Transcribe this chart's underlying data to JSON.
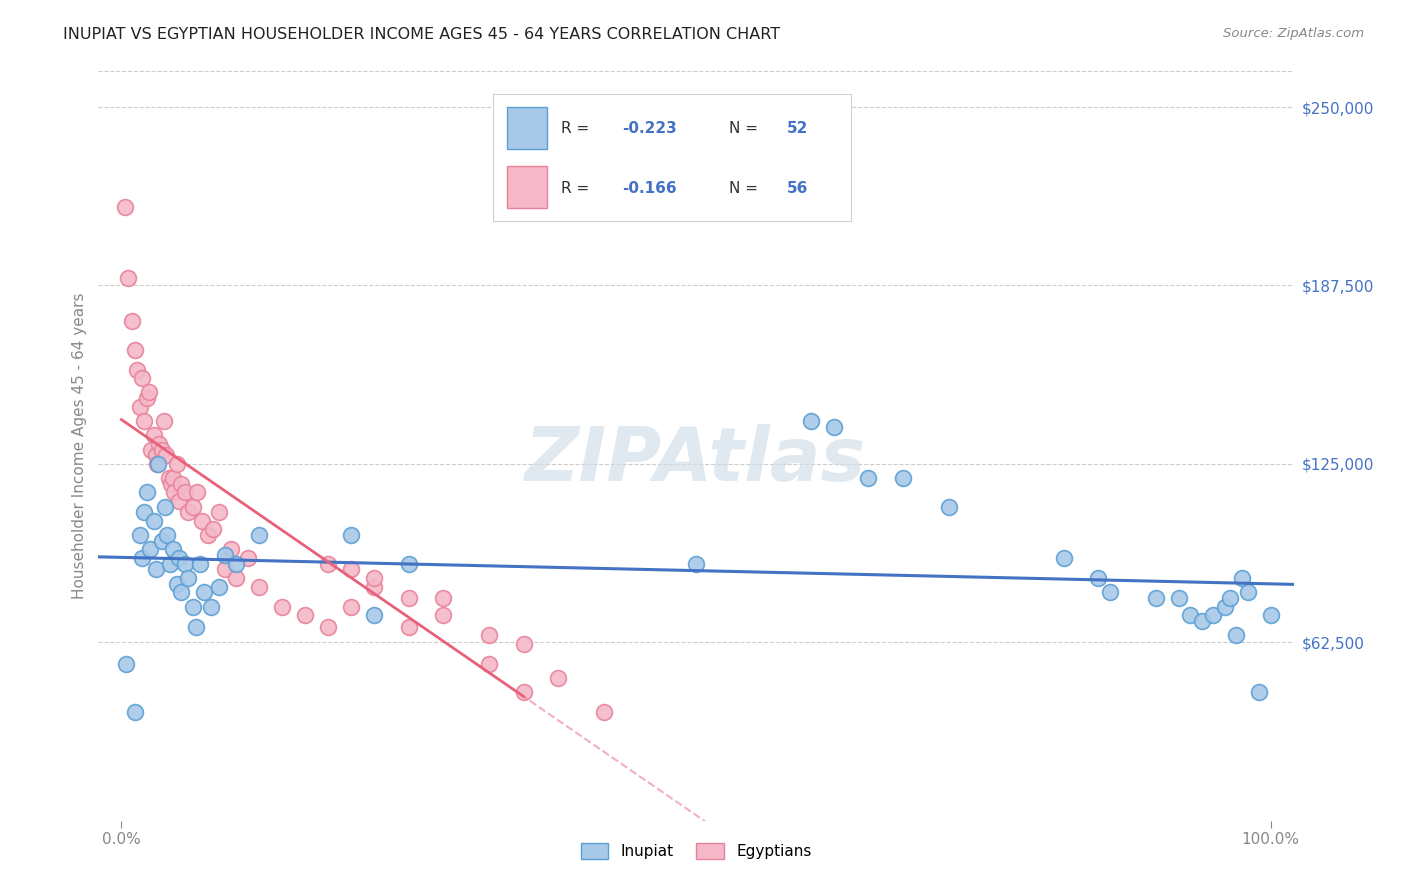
{
  "title": "INUPIAT VS EGYPTIAN HOUSEHOLDER INCOME AGES 45 - 64 YEARS CORRELATION CHART",
  "source": "Source: ZipAtlas.com",
  "ylabel": "Householder Income Ages 45 - 64 years",
  "ytick_labels": [
    "$62,500",
    "$125,000",
    "$187,500",
    "$250,000"
  ],
  "ytick_values": [
    62500,
    125000,
    187500,
    250000
  ],
  "ymin": 0,
  "ymax": 262500,
  "xmin": -0.02,
  "xmax": 1.02,
  "watermark": "ZIPAtlas",
  "inupiat_color": "#a8c8e8",
  "egyptian_color": "#f4b8c8",
  "inupiat_edge_color": "#5a9fd4",
  "egyptian_edge_color": "#e8829a",
  "inupiat_line_color": "#4472c4",
  "egyptian_line_color": "#e8607a",
  "inupiat_scatter_x": [
    0.004,
    0.012,
    0.016,
    0.018,
    0.02,
    0.022,
    0.025,
    0.028,
    0.03,
    0.032,
    0.035,
    0.038,
    0.04,
    0.042,
    0.045,
    0.048,
    0.05,
    0.052,
    0.055,
    0.058,
    0.062,
    0.065,
    0.068,
    0.072,
    0.078,
    0.085,
    0.09,
    0.1,
    0.12,
    0.2,
    0.22,
    0.25,
    0.5,
    0.6,
    0.62,
    0.65,
    0.68,
    0.72,
    0.82,
    0.85,
    0.86,
    0.9,
    0.92,
    0.93,
    0.94,
    0.95,
    0.96,
    0.965,
    0.97,
    0.975,
    0.98,
    0.99,
    1.0
  ],
  "inupiat_scatter_y": [
    55000,
    38000,
    100000,
    92000,
    108000,
    115000,
    95000,
    105000,
    88000,
    125000,
    98000,
    110000,
    100000,
    90000,
    95000,
    83000,
    92000,
    80000,
    90000,
    85000,
    75000,
    68000,
    90000,
    80000,
    75000,
    82000,
    93000,
    90000,
    100000,
    100000,
    72000,
    90000,
    90000,
    140000,
    138000,
    120000,
    120000,
    110000,
    92000,
    85000,
    80000,
    78000,
    78000,
    72000,
    70000,
    72000,
    75000,
    78000,
    65000,
    85000,
    80000,
    45000,
    72000
  ],
  "egyptian_scatter_x": [
    0.003,
    0.006,
    0.009,
    0.012,
    0.014,
    0.016,
    0.018,
    0.02,
    0.022,
    0.024,
    0.026,
    0.028,
    0.03,
    0.031,
    0.033,
    0.035,
    0.037,
    0.039,
    0.041,
    0.043,
    0.045,
    0.046,
    0.048,
    0.05,
    0.052,
    0.055,
    0.058,
    0.062,
    0.066,
    0.07,
    0.075,
    0.08,
    0.085,
    0.09,
    0.095,
    0.1,
    0.11,
    0.12,
    0.14,
    0.16,
    0.18,
    0.2,
    0.22,
    0.25,
    0.28,
    0.32,
    0.35,
    0.18,
    0.2,
    0.22,
    0.25,
    0.28,
    0.32,
    0.35,
    0.38,
    0.42
  ],
  "egyptian_scatter_y": [
    215000,
    190000,
    175000,
    165000,
    158000,
    145000,
    155000,
    140000,
    148000,
    150000,
    130000,
    135000,
    128000,
    125000,
    132000,
    130000,
    140000,
    128000,
    120000,
    118000,
    120000,
    115000,
    125000,
    112000,
    118000,
    115000,
    108000,
    110000,
    115000,
    105000,
    100000,
    102000,
    108000,
    88000,
    95000,
    85000,
    92000,
    82000,
    75000,
    72000,
    68000,
    88000,
    82000,
    78000,
    72000,
    65000,
    62000,
    90000,
    75000,
    85000,
    68000,
    78000,
    55000,
    45000,
    50000,
    38000
  ]
}
